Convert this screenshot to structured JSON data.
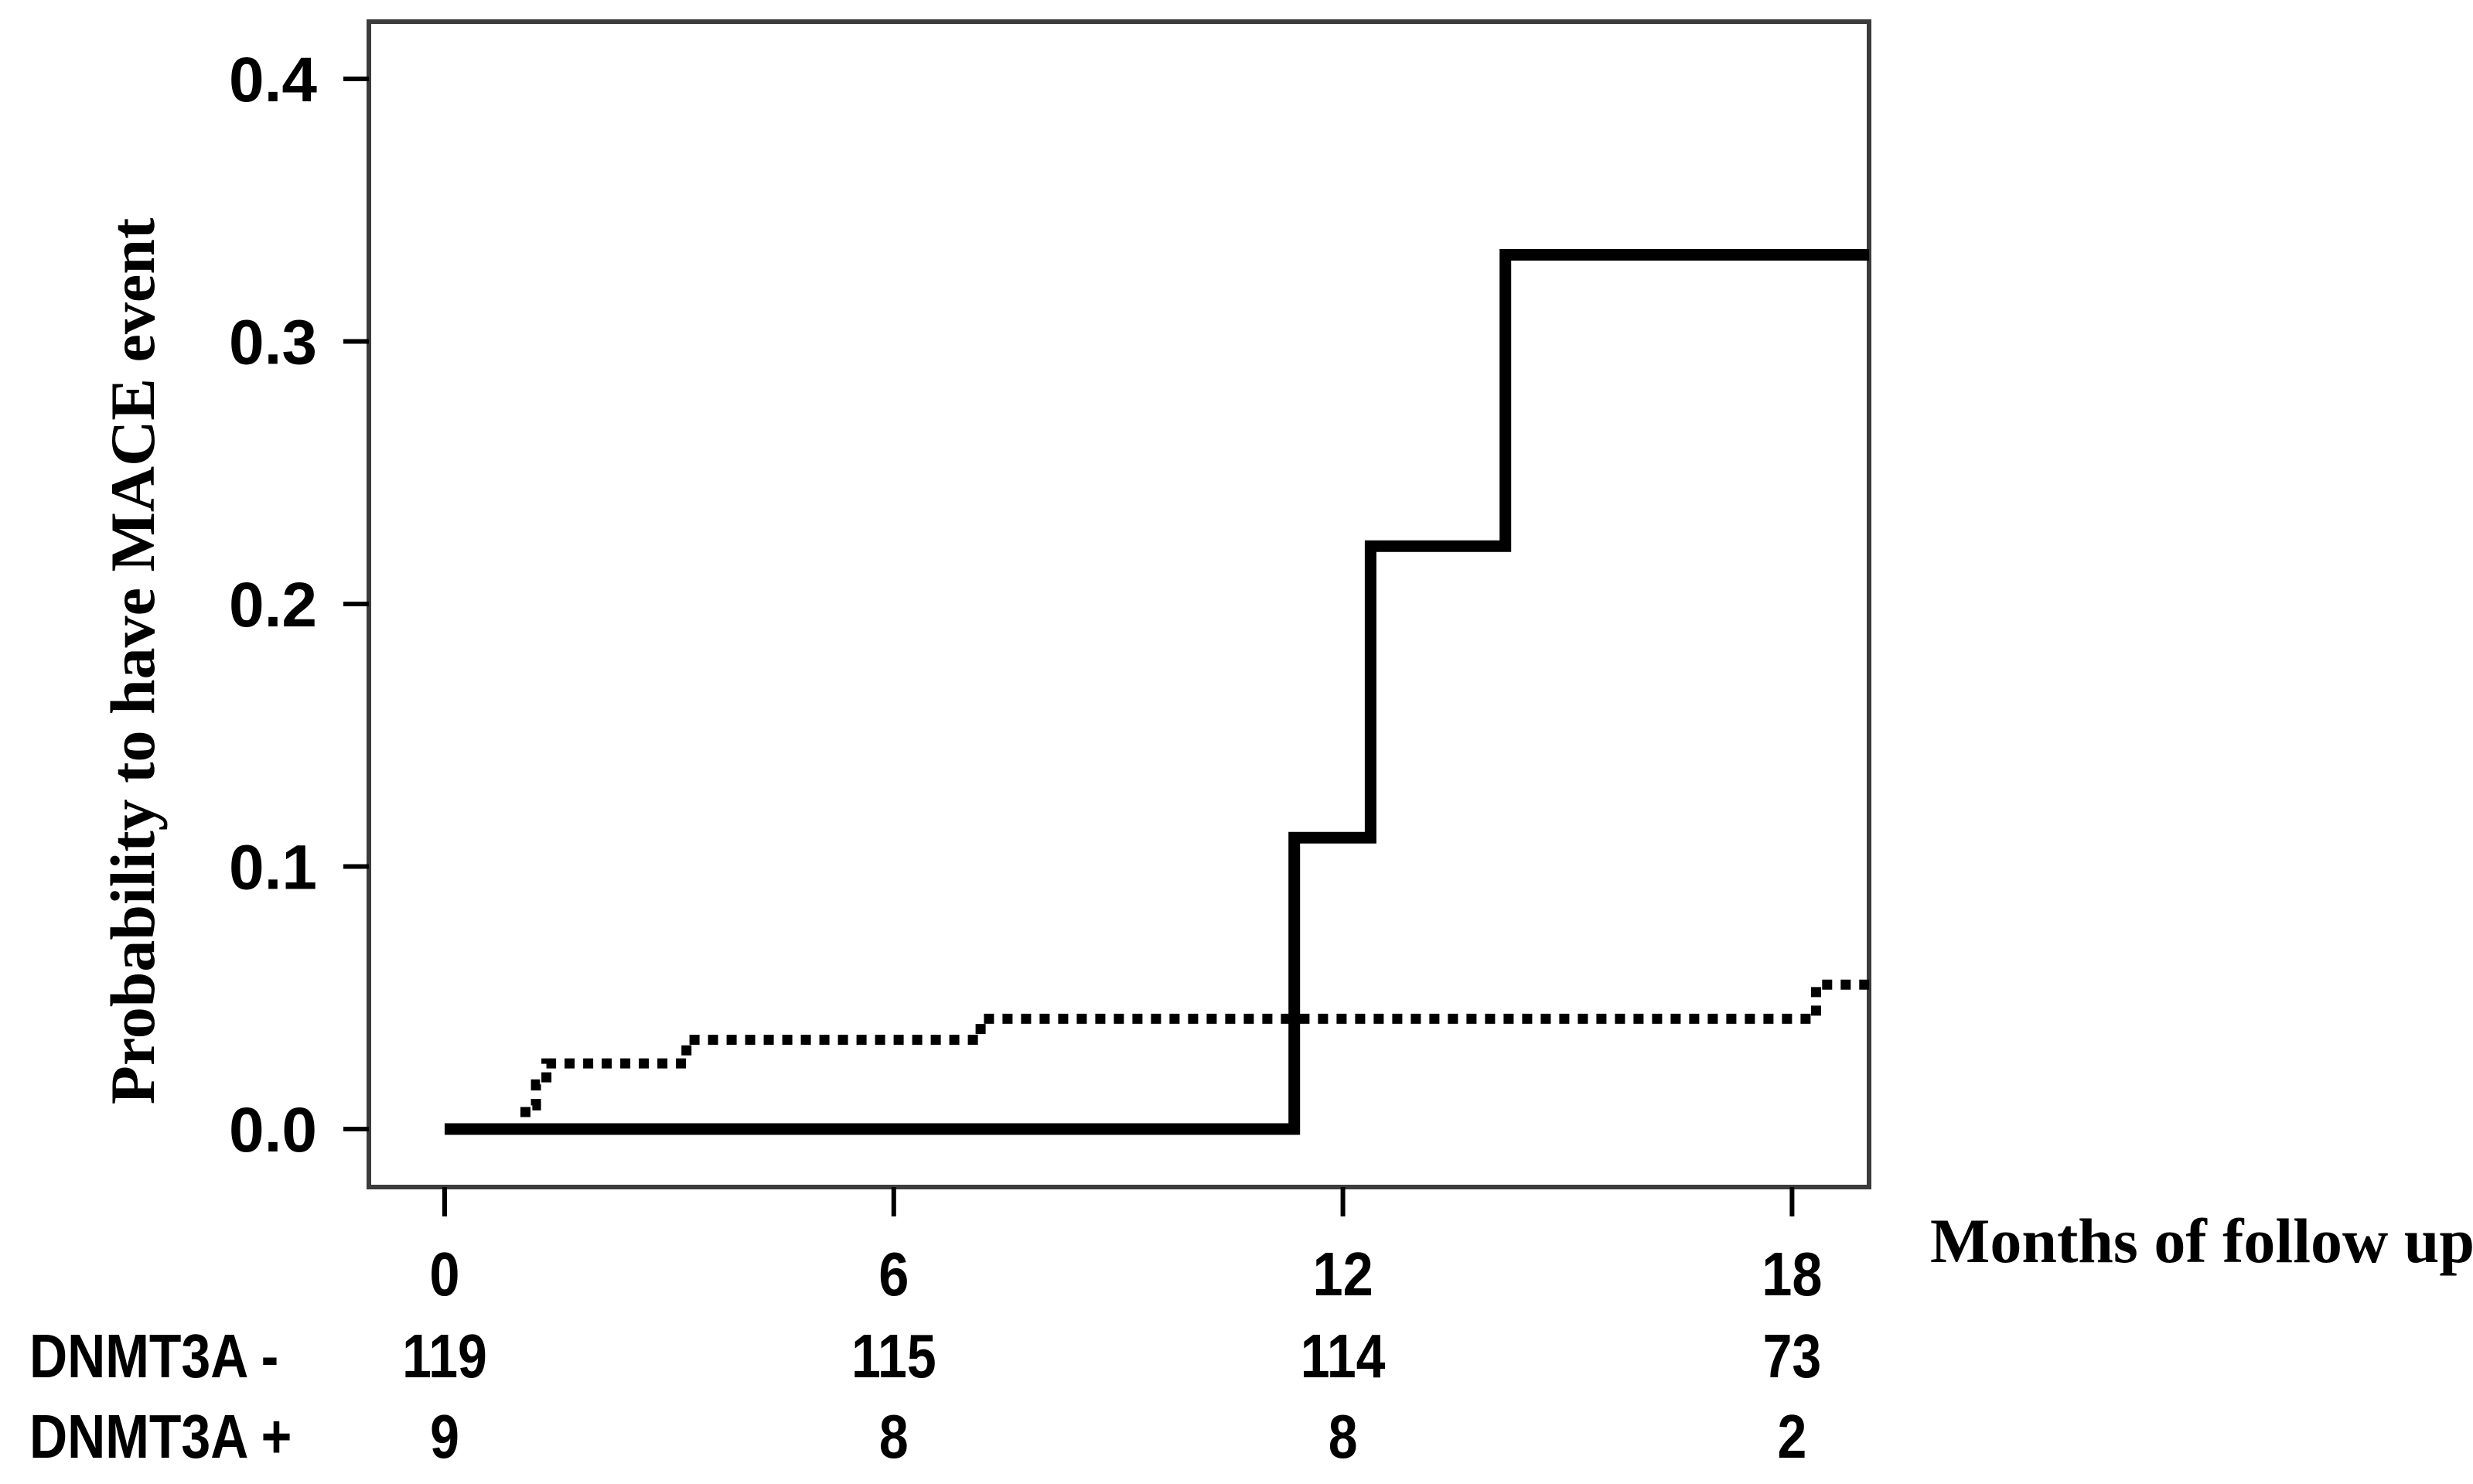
{
  "figure": {
    "background": "#ffffff",
    "y_axis_title": "Probability to have MACE event",
    "x_axis_title": "Months of follow up",
    "accent_color": "#000000",
    "axis_border_color": "#3c3c3c"
  },
  "chart_data": {
    "type": "line",
    "subtype": "kaplan-meier-cumulative-incidence-step",
    "title": "",
    "xlabel": "Months of follow up",
    "ylabel": "Probability to have MACE event",
    "x_ticks": [
      0,
      6,
      12,
      18
    ],
    "x_tick_labels": [
      "0",
      "6",
      "12",
      "18"
    ],
    "y_ticks": [
      0.0,
      0.1,
      0.2,
      0.3,
      0.4
    ],
    "y_tick_labels": [
      "0.0",
      "0.1",
      "0.2",
      "0.3",
      "0.4"
    ],
    "xlim": [
      -1.05,
      19.05
    ],
    "ylim": [
      -0.022,
      0.423
    ],
    "grid": false,
    "legend_position": "none",
    "series": [
      {
        "name": "DNMT3A +",
        "style": "solid",
        "color": "#000000",
        "points": [
          [
            0,
            0
          ],
          [
            11.35,
            0
          ],
          [
            11.35,
            0.111
          ],
          [
            12.37,
            0.111
          ],
          [
            12.37,
            0.222
          ],
          [
            14.17,
            0.222
          ],
          [
            14.17,
            0.333
          ],
          [
            19.03,
            0.333
          ]
        ]
      },
      {
        "name": "DNMT3A -",
        "style": "dotted",
        "color": "#000000",
        "points": [
          [
            0,
            0
          ],
          [
            1.08,
            0
          ],
          [
            1.08,
            0.009
          ],
          [
            1.22,
            0.009
          ],
          [
            1.22,
            0.017
          ],
          [
            1.36,
            0.017
          ],
          [
            1.36,
            0.025
          ],
          [
            3.23,
            0.025
          ],
          [
            3.23,
            0.034
          ],
          [
            7.16,
            0.034
          ],
          [
            7.16,
            0.042
          ],
          [
            18.32,
            0.042
          ],
          [
            18.32,
            0.055
          ],
          [
            19.03,
            0.055
          ]
        ]
      }
    ],
    "numbers_at_risk": {
      "time_points": [
        0,
        6,
        12,
        18
      ],
      "rows": [
        {
          "label": "DNMT3A -",
          "counts": [
            "119",
            "115",
            "114",
            "73"
          ]
        },
        {
          "label": "DNMT3A +",
          "counts": [
            "9",
            "8",
            "8",
            "2"
          ]
        }
      ]
    }
  }
}
